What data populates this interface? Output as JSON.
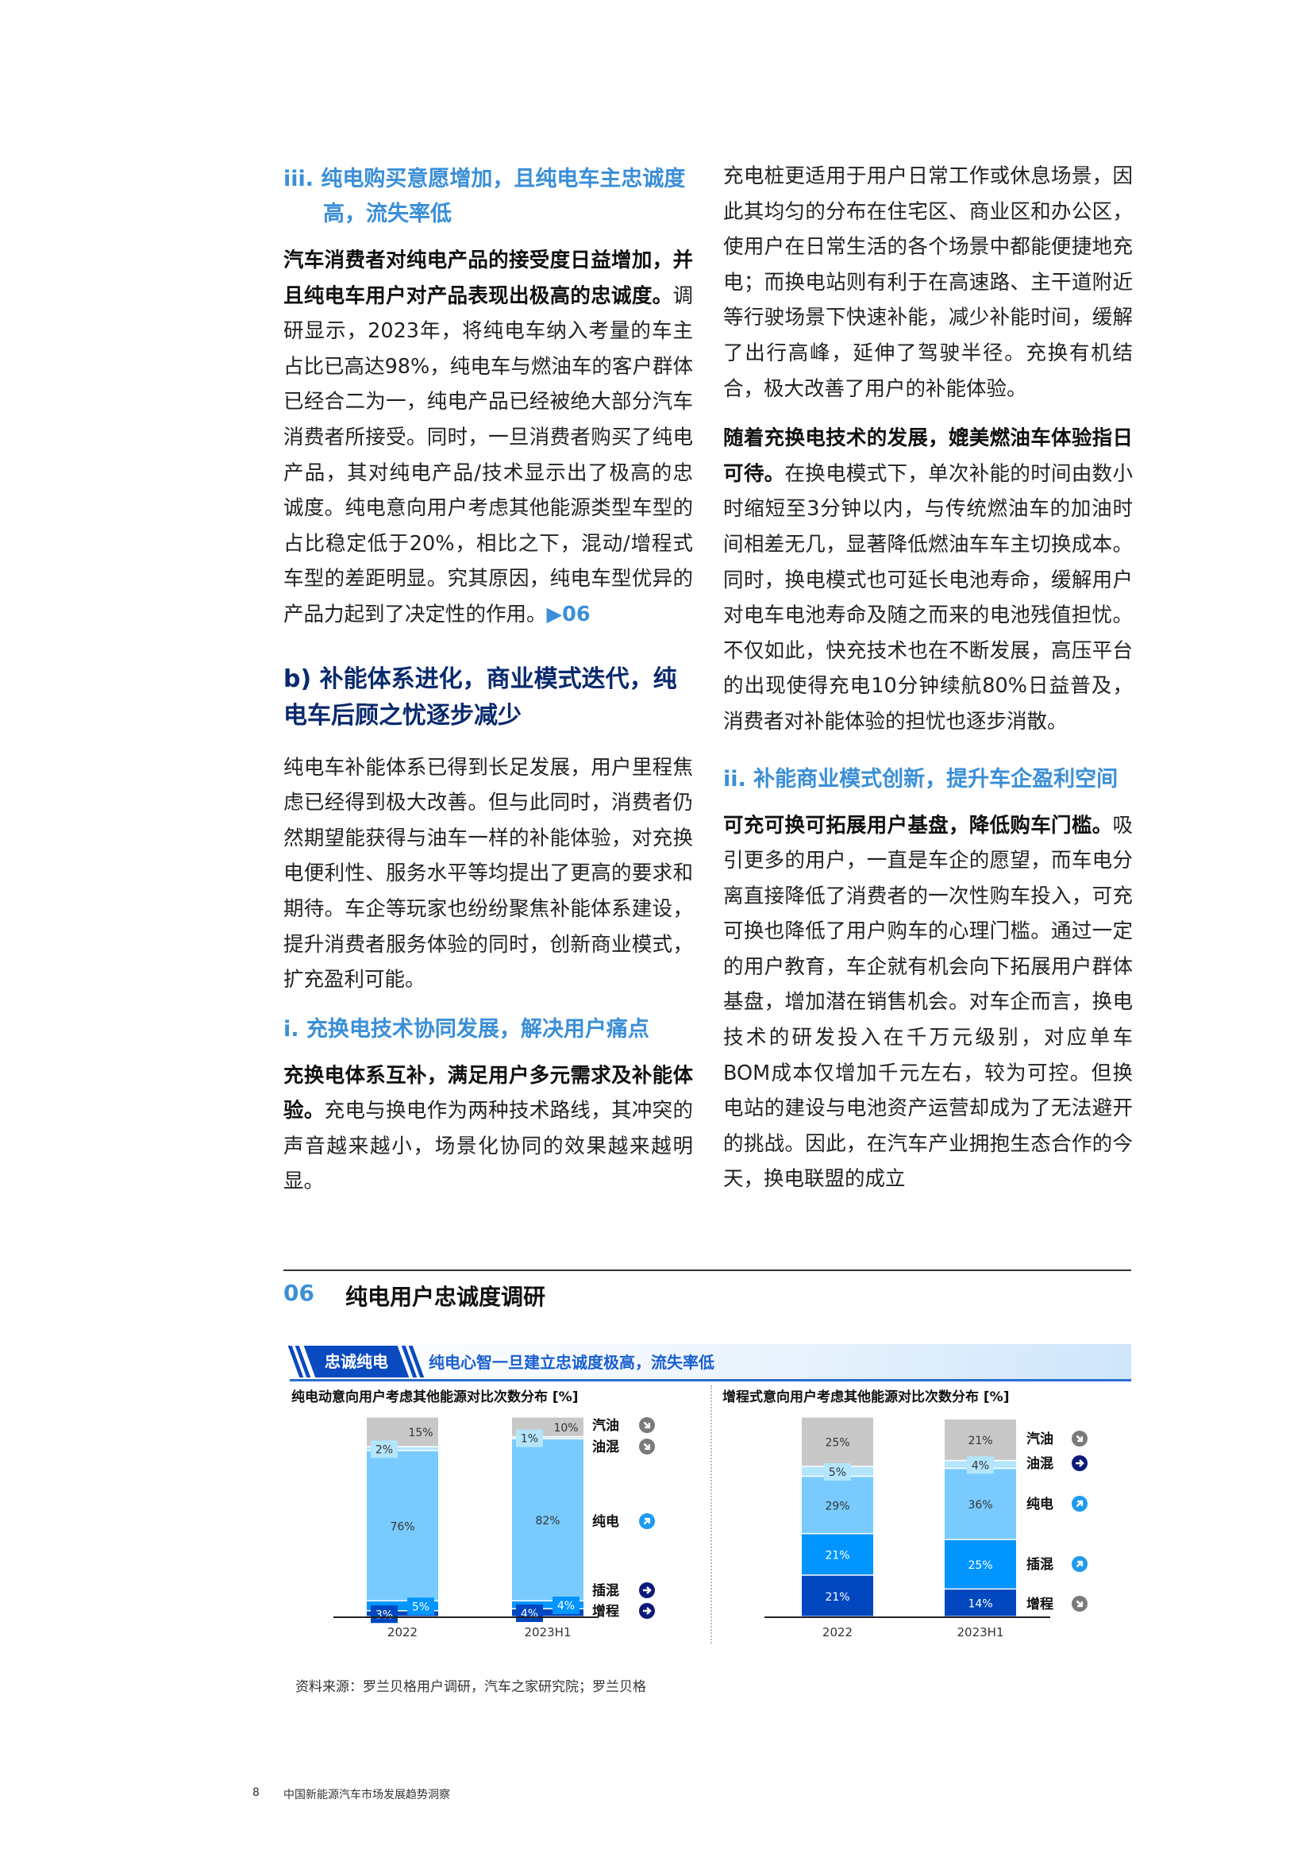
{
  "left": {
    "h_iii": "iii. 纯电购买意愿增加，且纯电车主忠诚度高，流失率低",
    "p1_bold": "汽车消费者对纯电产品的接受度日益增加，并且纯电车用户对产品表现出极高的忠诚度。",
    "p1_text": "调研显示，2023年，将纯电车纳入考量的车主占比已高达98%，纯电车与燃油车的客户群体已经合二为一，纯电产品已经被绝大部分汽车消费者所接受。同时，一旦消费者购买了纯电产品，其对纯电产品/技术显示出了极高的忠诚度。纯电意向用户考虑其他能源类型车型的占比稳定低于20%，相比之下，混动/增程式车型的差距明显。究其原因，纯电车型优异的产品力起到了决定性的作用。",
    "p1_ref": "▶06",
    "h_b": "b) 补能体系进化，商业模式迭代，纯电车后顾之忧逐步减少",
    "p2_text": "纯电车补能体系已得到长足发展，用户里程焦虑已经得到极大改善。但与此同时，消费者仍然期望能获得与油车一样的补能体验，对充换电便利性、服务水平等均提出了更高的要求和期待。车企等玩家也纷纷聚焦补能体系建设，提升消费者服务体验的同时，创新商业模式，扩充盈利可能。",
    "h_i": "i. 充换电技术协同发展，解决用户痛点",
    "p3_bold": "充换电体系互补，满足用户多元需求及补能体验。",
    "p3_text": "充电与换电作为两种技术路线，其冲突的声音越来越小，场景化协同的效果越来越明显。"
  },
  "right": {
    "p1_text": "充电桩更适用于用户日常工作或休息场景，因此其均匀的分布在住宅区、商业区和办公区，使用户在日常生活的各个场景中都能便捷地充电；而换电站则有利于在高速路、主干道附近等行驶场景下快速补能，减少补能时间，缓解了出行高峰，延伸了驾驶半径。充换有机结合，极大改善了用户的补能体验。",
    "p2_bold": "随着充换电技术的发展，媲美燃油车体验指日可待。",
    "p2_text": "在换电模式下，单次补能的时间由数小时缩短至3分钟以内，与传统燃油车的加油时间相差无几，显著降低燃油车车主切换成本。同时，换电模式也可延长电池寿命，缓解用户对电车电池寿命及随之而来的电池残值担忧。不仅如此，快充技术也在不断发展，高压平台的出现使得充电10分钟续航80%日益普及，消费者对补能体验的担忧也逐步消散。",
    "h_ii": "ii. 补能商业模式创新，提升车企盈利空间",
    "p3_bold": "可充可换可拓展用户基盘，降低购车门槛。",
    "p3_text": "吸引更多的用户，一直是车企的愿望，而车电分离直接降低了消费者的一次性购车投入，可充可换也降低了用户购车的心理门槛。通过一定的用户教育，车企就有机会向下拓展用户群体基盘，增加潜在销售机会。对车企而言，换电技术的研发投入在千万元级别，对应单车BOM成本仅增加千元左右，较为可控。但换电站的建设与电池资产运营却成为了无法避开的挑战。因此，在汽车产业拥抱生态合作的今天，换电联盟的成立"
  },
  "figure": {
    "number": "06",
    "title": "纯电用户忠诚度调研",
    "tag": "忠诚纯电",
    "banner_text": "纯电心智一旦建立忠诚度极高，流失率低",
    "source": "资料来源：罗兰贝格用户调研，汽车之家研究院；罗兰贝格"
  },
  "footer": {
    "page_number": "8",
    "report_title": "中国新能源汽车市场发展趋势洞察"
  },
  "colors": {
    "汽油": "#c8c8c8",
    "油混": "#b3e5fc",
    "纯电": "#79cbff",
    "插混": "#0095ff",
    "增程": "#0047c0",
    "accent": "#3a8fd8",
    "trend_down": "#7a7a7a",
    "trend_flat": "#0b1a7a",
    "trend_up": "#1e9bf0"
  },
  "chart_data": [
    {
      "type": "bar",
      "stacked": true,
      "title": "纯电动意向用户考虑其他能源对比次数分布 [%]",
      "categories": [
        "2022",
        "2023H1"
      ],
      "series": [
        {
          "name": "增程",
          "values": [
            3,
            4
          ],
          "trend": "flat-icon"
        },
        {
          "name": "插混",
          "values": [
            5,
            4
          ],
          "trend": "flat-icon"
        },
        {
          "name": "纯电",
          "values": [
            76,
            82
          ],
          "trend": "up-icon"
        },
        {
          "name": "油混",
          "values": [
            2,
            1
          ],
          "trend": "down-icon"
        },
        {
          "name": "汽油",
          "values": [
            15,
            10
          ],
          "trend": "down-icon"
        }
      ],
      "ylim": [
        0,
        100
      ]
    },
    {
      "type": "bar",
      "stacked": true,
      "title": "增程式意向用户考虑其他能源对比次数分布 [%]",
      "categories": [
        "2022",
        "2023H1"
      ],
      "series": [
        {
          "name": "增程",
          "values": [
            21,
            14
          ],
          "trend": "down-icon"
        },
        {
          "name": "插混",
          "values": [
            21,
            25
          ],
          "trend": "up-icon"
        },
        {
          "name": "纯电",
          "values": [
            29,
            36
          ],
          "trend": "up-icon"
        },
        {
          "name": "油混",
          "values": [
            5,
            4
          ],
          "trend": "flat-icon"
        },
        {
          "name": "汽油",
          "values": [
            25,
            21
          ],
          "trend": "down-icon"
        }
      ],
      "ylim": [
        0,
        100
      ]
    }
  ]
}
